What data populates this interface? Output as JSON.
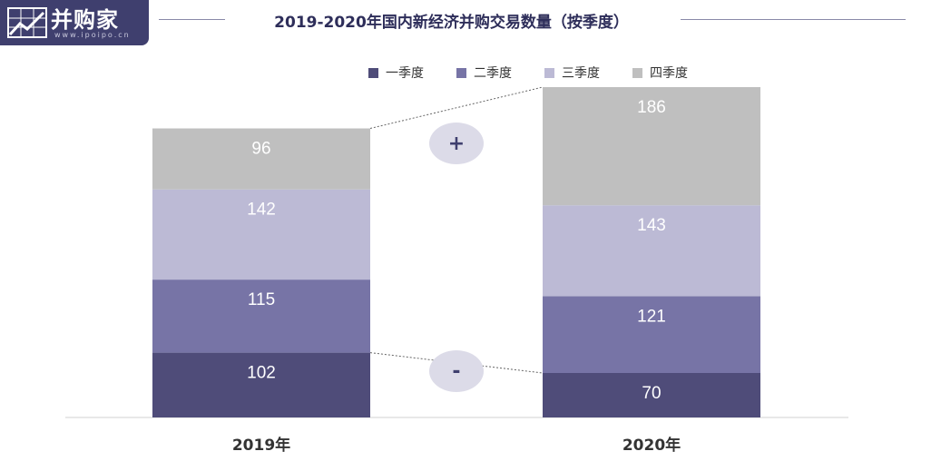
{
  "logo": {
    "text": "并购家",
    "url_text": "www.ipoipo.cn"
  },
  "chart_data": {
    "type": "bar",
    "stacked": true,
    "title": "2019-2020年国内新经济并购交易数量（按季度）",
    "categories": [
      "2019年",
      "2020年"
    ],
    "series": [
      {
        "name": "一季度",
        "values": [
          102,
          70
        ],
        "color": "#4f4c79"
      },
      {
        "name": "二季度",
        "values": [
          115,
          121
        ],
        "color": "#7774a6"
      },
      {
        "name": "三季度",
        "values": [
          142,
          143
        ],
        "color": "#bcbad5"
      },
      {
        "name": "四季度",
        "values": [
          96,
          186
        ],
        "color": "#bfbfbf"
      }
    ],
    "legend_position": "top",
    "grid": false,
    "annotations": [
      {
        "text": "+",
        "between": "四季度"
      },
      {
        "text": "-",
        "between": "一季度"
      }
    ]
  }
}
